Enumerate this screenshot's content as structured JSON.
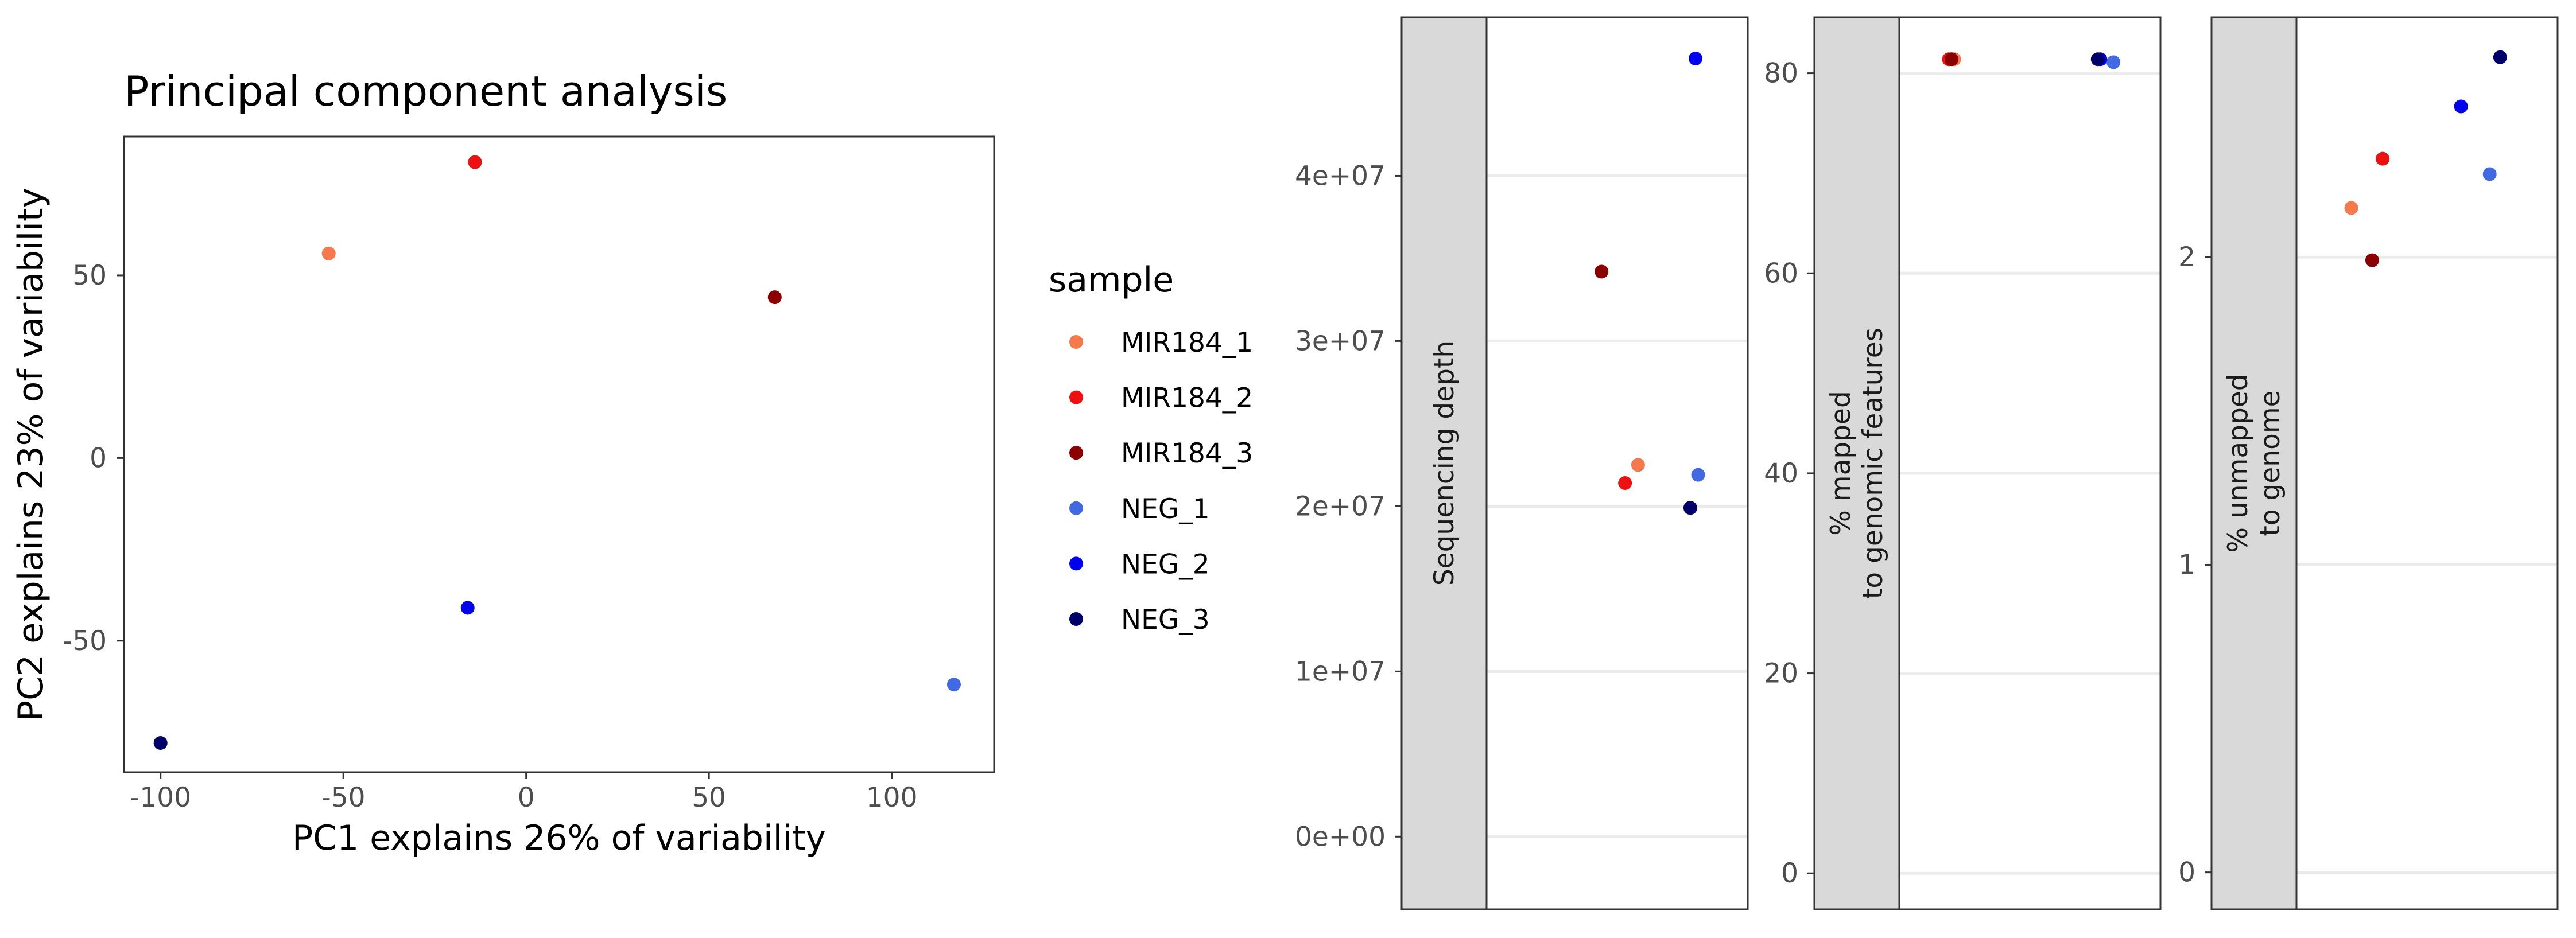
{
  "colors": {
    "MIR184_1": "#f4794d",
    "MIR184_2": "#ee1111",
    "MIR184_3": "#8b0000",
    "NEG_1": "#4169e1",
    "NEG_2": "#0000ee",
    "NEG_3": "#00006b"
  },
  "legend": {
    "title": "sample",
    "items": [
      "MIR184_1",
      "MIR184_2",
      "MIR184_3",
      "NEG_1",
      "NEG_2",
      "NEG_3"
    ]
  },
  "chart_data": [
    {
      "type": "scatter",
      "title": "Principal component analysis",
      "xlabel": "PC1 explains 26% of variability",
      "ylabel": "PC2 explains 23% of variability",
      "xlim": [
        -110,
        128
      ],
      "ylim": [
        -86,
        88
      ],
      "xticks": [
        -100,
        -50,
        0,
        50,
        100
      ],
      "yticks": [
        -50,
        0,
        50
      ],
      "grid": false,
      "legend_position": "right",
      "points": [
        {
          "sample": "MIR184_1",
          "x": -54,
          "y": 56
        },
        {
          "sample": "MIR184_2",
          "x": -14,
          "y": 81
        },
        {
          "sample": "MIR184_3",
          "x": 68,
          "y": 44
        },
        {
          "sample": "NEG_1",
          "x": 117,
          "y": -62
        },
        {
          "sample": "NEG_2",
          "x": -16,
          "y": -41
        },
        {
          "sample": "NEG_3",
          "x": -100,
          "y": -78
        }
      ]
    },
    {
      "type": "scatter",
      "strip_label": "Sequencing depth",
      "ylim": [
        -4400000,
        49600000
      ],
      "yticks": [
        0,
        10000000,
        20000000,
        30000000,
        40000000
      ],
      "ytick_labels": [
        "0e+00",
        "1e+07",
        "2e+07",
        "3e+07",
        "4e+07"
      ],
      "points": [
        {
          "sample": "MIR184_1",
          "y": 22500000
        },
        {
          "sample": "MIR184_2",
          "y": 21400000
        },
        {
          "sample": "MIR184_3",
          "y": 34200000
        },
        {
          "sample": "NEG_1",
          "y": 21900000
        },
        {
          "sample": "NEG_2",
          "y": 47100000
        },
        {
          "sample": "NEG_3",
          "y": 19900000
        }
      ]
    },
    {
      "type": "scatter",
      "strip_label": [
        "% mapped",
        "to genomic features"
      ],
      "ylim": [
        -3.6,
        85.6
      ],
      "yticks": [
        0,
        20,
        40,
        60,
        80
      ],
      "ytick_labels": [
        "0",
        "20",
        "40",
        "60",
        "80"
      ],
      "points": [
        {
          "sample": "MIR184_1",
          "y": 81.4
        },
        {
          "sample": "MIR184_2",
          "y": 81.4
        },
        {
          "sample": "MIR184_3",
          "y": 81.4
        },
        {
          "sample": "NEG_1",
          "y": 81.1
        },
        {
          "sample": "NEG_2",
          "y": 81.4
        },
        {
          "sample": "NEG_3",
          "y": 81.4
        }
      ]
    },
    {
      "type": "scatter",
      "strip_label": [
        "% unmapped",
        "to genome"
      ],
      "ylim": [
        -0.12,
        2.78
      ],
      "yticks": [
        0,
        1,
        2
      ],
      "ytick_labels": [
        "0",
        "1",
        "2"
      ],
      "points": [
        {
          "sample": "MIR184_1",
          "y": 2.16
        },
        {
          "sample": "MIR184_2",
          "y": 2.32
        },
        {
          "sample": "MIR184_3",
          "y": 1.99
        },
        {
          "sample": "NEG_1",
          "y": 2.27
        },
        {
          "sample": "NEG_2",
          "y": 2.49
        },
        {
          "sample": "NEG_3",
          "y": 2.65
        }
      ]
    }
  ]
}
